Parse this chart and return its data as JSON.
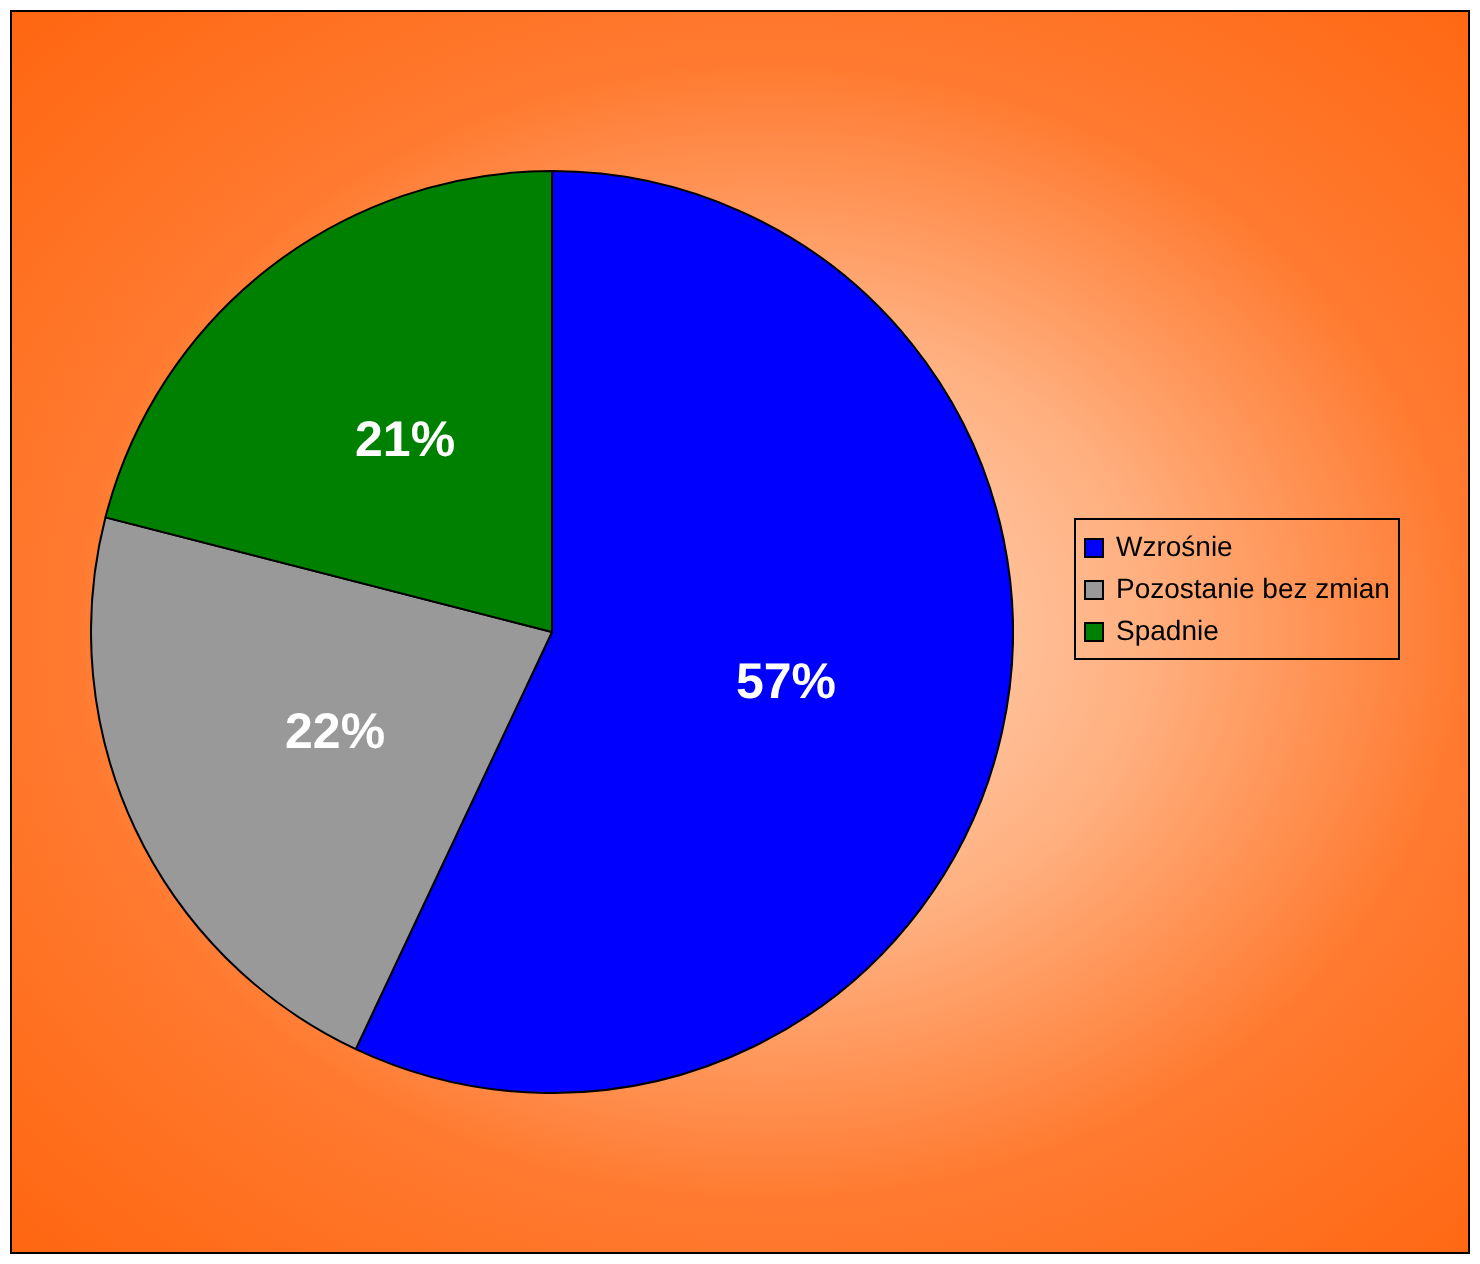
{
  "chart_data": {
    "type": "pie",
    "categories": [
      "Wzrośnie",
      "Pozostanie bez zmian",
      "Spadnie"
    ],
    "values": [
      57,
      22,
      21
    ],
    "colors": [
      "#0000ff",
      "#999999",
      "#008000"
    ],
    "value_labels": [
      "57%",
      "22%",
      "21%"
    ],
    "legend": "right"
  }
}
